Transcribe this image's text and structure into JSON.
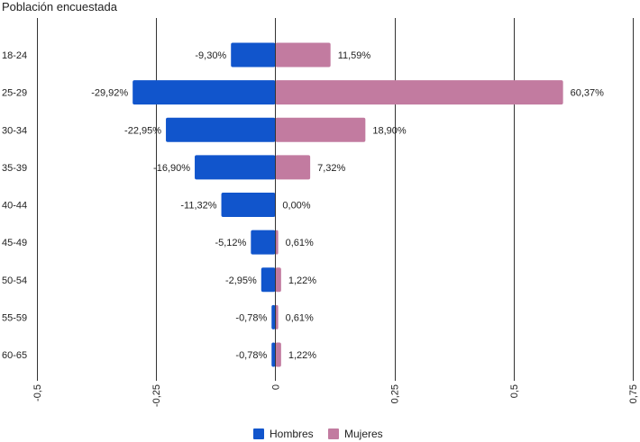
{
  "chart_data": {
    "type": "bar",
    "orientation": "horizontal",
    "title": "Población encuestada",
    "categories": [
      "18-24",
      "25-29",
      "30-34",
      "35-39",
      "40-44",
      "45-49",
      "50-54",
      "55-59",
      "60-65"
    ],
    "series": [
      {
        "name": "Hombres",
        "color": "#1155cc",
        "values": [
          -0.093,
          -0.2992,
          -0.2295,
          -0.169,
          -0.1132,
          -0.0512,
          -0.0295,
          -0.0078,
          -0.0078
        ],
        "labels": [
          "-9,30%",
          "-29,92%",
          "-22,95%",
          "-16,90%",
          "-11,32%",
          "-5,12%",
          "-2,95%",
          "-0,78%",
          "-0,78%"
        ]
      },
      {
        "name": "Mujeres",
        "color": "#c27ba0",
        "values": [
          0.1159,
          0.6037,
          0.189,
          0.0732,
          0.0,
          0.0061,
          0.0122,
          0.0061,
          0.0122
        ],
        "labels": [
          "11,59%",
          "60,37%",
          "18,90%",
          "7,32%",
          "0,00%",
          "0,61%",
          "1,22%",
          "0,61%",
          "1,22%"
        ]
      }
    ],
    "xlim": [
      -0.5,
      0.75
    ],
    "xticks": [
      -0.5,
      -0.25,
      0,
      0.25,
      0.5,
      0.75
    ],
    "xtick_labels": [
      "-0,5",
      "-0,25",
      "0",
      "0,25",
      "0,5",
      "0,75"
    ],
    "grid": true,
    "legend": "bottom-center"
  }
}
